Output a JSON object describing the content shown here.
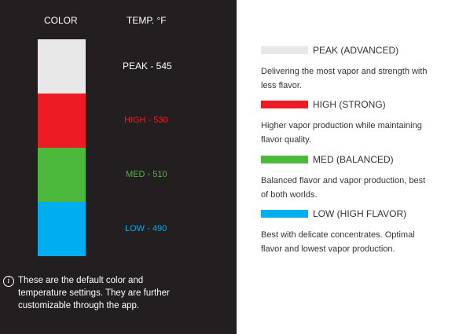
{
  "left": {
    "col_color_label": "COLOR",
    "col_temp_label": "TEMP. °F",
    "levels": [
      {
        "label": "PEAK - 545",
        "color": "#e8e8e8",
        "text_color": "#ffffff"
      },
      {
        "label": "HIGH - 530",
        "color": "#ed1c24",
        "text_color": "#ed1c24"
      },
      {
        "label": "MED - 510",
        "color": "#4cb83c",
        "text_color": "#4cb83c"
      },
      {
        "label": "LOW - 490",
        "color": "#00aeef",
        "text_color": "#00aeef"
      }
    ],
    "note": "These are the default color and temperature settings. They are further customizable through the app.",
    "note_icon": "info-icon"
  },
  "legend": [
    {
      "title": "PEAK (ADVANCED)",
      "color": "#e8e8e8",
      "description": "Delivering the most vapor and strength with less flavor."
    },
    {
      "title": "HIGH (STRONG)",
      "color": "#ed1c24",
      "description": "Higher vapor production while maintaining flavor quality."
    },
    {
      "title": "MED (BALANCED)",
      "color": "#4cb83c",
      "description": "Balanced flavor and vapor production, best of both worlds."
    },
    {
      "title": "LOW (HIGH FLAVOR)",
      "color": "#00aeef",
      "description": "Best with delicate concentrates. Optimal flavor and lowest vapor production."
    }
  ]
}
